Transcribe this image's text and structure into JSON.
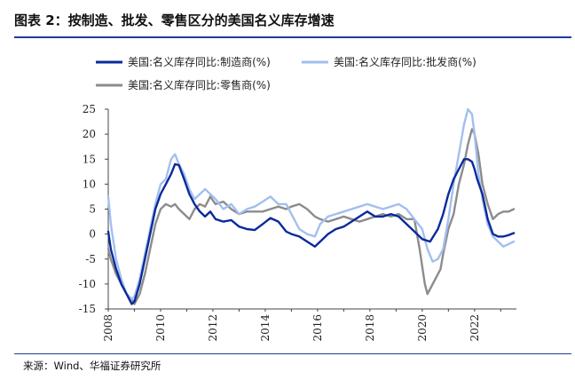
{
  "title": "图表 2：按制造、批发、零售区分的美国名义库存增速",
  "source": "来源：Wind、华福证券研究所",
  "chart_data": {
    "type": "line",
    "title": "图表 2：按制造、批发、零售区分的美国名义库存增速",
    "xlabel": "",
    "ylabel": "",
    "xlim": [
      2008,
      2023.6
    ],
    "ylim": [
      -15,
      25
    ],
    "yticks": [
      25,
      20,
      15,
      10,
      5,
      0,
      -5,
      -10,
      -15
    ],
    "xticks": [
      "2008",
      "2010",
      "2012",
      "2014",
      "2016",
      "2018",
      "2020",
      "2022"
    ],
    "grid": false,
    "legend_position": "top",
    "series": [
      {
        "name": "美国:名义库存同比:制造商(%)",
        "color": "#0a2a9c",
        "x": [
          2008.0,
          2008.1,
          2008.3,
          2008.5,
          2008.7,
          2008.9,
          2009.0,
          2009.2,
          2009.4,
          2009.6,
          2009.8,
          2010.0,
          2010.2,
          2010.4,
          2010.55,
          2010.7,
          2010.9,
          2011.1,
          2011.3,
          2011.5,
          2011.7,
          2011.9,
          2012.1,
          2012.4,
          2012.7,
          2013.0,
          2013.3,
          2013.6,
          2013.9,
          2014.2,
          2014.5,
          2014.8,
          2015.0,
          2015.3,
          2015.6,
          2015.9,
          2016.1,
          2016.4,
          2016.7,
          2017.0,
          2017.3,
          2017.6,
          2017.9,
          2018.2,
          2018.5,
          2018.8,
          2019.1,
          2019.4,
          2019.7,
          2020.0,
          2020.3,
          2020.6,
          2020.8,
          2021.0,
          2021.2,
          2021.4,
          2021.6,
          2021.75,
          2021.9,
          2022.0,
          2022.1,
          2022.3,
          2022.5,
          2022.7,
          2022.9,
          2023.1,
          2023.3,
          2023.5
        ],
        "y": [
          0.5,
          -3,
          -7,
          -10,
          -12,
          -14,
          -13.5,
          -10,
          -5,
          0,
          5,
          8,
          10,
          12,
          14,
          13.8,
          11,
          8,
          6,
          4.5,
          3.5,
          4.5,
          3,
          2.5,
          2.8,
          1.5,
          1,
          0.8,
          2,
          3.2,
          2.5,
          0.5,
          0,
          -0.5,
          -1.5,
          -2.5,
          -1.5,
          0,
          1,
          1.5,
          2.5,
          3.5,
          4.5,
          3.5,
          3.5,
          4,
          3.5,
          2,
          0.5,
          -1,
          -1.5,
          1,
          4,
          8,
          11,
          13,
          15,
          15,
          14.5,
          13,
          11,
          8,
          3,
          0,
          -0.5,
          -0.5,
          -0.2,
          0.2
        ]
      },
      {
        "name": "美国:名义库存同比:批发商(%)",
        "color": "#a3bff0",
        "x": [
          2008.0,
          2008.1,
          2008.3,
          2008.5,
          2008.7,
          2008.9,
          2009.0,
          2009.2,
          2009.4,
          2009.6,
          2009.8,
          2010.0,
          2010.2,
          2010.4,
          2010.55,
          2010.7,
          2010.9,
          2011.1,
          2011.3,
          2011.5,
          2011.7,
          2011.9,
          2012.1,
          2012.4,
          2012.7,
          2013.0,
          2013.3,
          2013.6,
          2013.9,
          2014.2,
          2014.5,
          2014.8,
          2015.0,
          2015.3,
          2015.6,
          2015.9,
          2016.1,
          2016.4,
          2016.7,
          2017.0,
          2017.3,
          2017.6,
          2017.9,
          2018.2,
          2018.5,
          2018.8,
          2019.1,
          2019.4,
          2019.7,
          2020.0,
          2020.2,
          2020.4,
          2020.6,
          2020.8,
          2021.0,
          2021.2,
          2021.4,
          2021.6,
          2021.75,
          2021.9,
          2022.0,
          2022.15,
          2022.3,
          2022.5,
          2022.7,
          2022.9,
          2023.1,
          2023.3,
          2023.5
        ],
        "y": [
          7.5,
          2,
          -5,
          -9,
          -12,
          -13,
          -12.5,
          -9,
          -4,
          1,
          6,
          10,
          11,
          15,
          16,
          14,
          12,
          9,
          7,
          8,
          9,
          8,
          7,
          5,
          6,
          4,
          5,
          5.5,
          6.5,
          7.5,
          6,
          6,
          4,
          1,
          0,
          -0.5,
          2,
          3.5,
          4,
          4.5,
          5,
          5.5,
          6,
          5.5,
          5,
          5.5,
          6,
          5,
          3,
          1,
          -3,
          -5.5,
          -5,
          -3,
          3,
          10,
          16,
          22,
          25,
          24,
          20,
          12,
          7,
          2,
          -0.5,
          -1.5,
          -2.5,
          -2,
          -1.5
        ]
      },
      {
        "name": "美国:名义库存同比:零售商(%)",
        "color": "#8c8c8c",
        "x": [
          2008.0,
          2008.1,
          2008.3,
          2008.5,
          2008.7,
          2008.9,
          2009.0,
          2009.2,
          2009.4,
          2009.6,
          2009.8,
          2010.0,
          2010.2,
          2010.4,
          2010.55,
          2010.7,
          2010.9,
          2011.1,
          2011.3,
          2011.5,
          2011.7,
          2011.9,
          2012.1,
          2012.4,
          2012.7,
          2013.0,
          2013.3,
          2013.6,
          2013.9,
          2014.2,
          2014.5,
          2014.8,
          2015.0,
          2015.3,
          2015.6,
          2015.9,
          2016.1,
          2016.4,
          2016.7,
          2017.0,
          2017.3,
          2017.6,
          2017.9,
          2018.2,
          2018.5,
          2018.8,
          2019.1,
          2019.4,
          2019.7,
          2019.9,
          2020.1,
          2020.2,
          2020.3,
          2020.5,
          2020.7,
          2020.8,
          2021.0,
          2021.2,
          2021.4,
          2021.6,
          2021.75,
          2021.9,
          2022.0,
          2022.15,
          2022.3,
          2022.5,
          2022.7,
          2022.9,
          2023.1,
          2023.3,
          2023.5
        ],
        "y": [
          -3,
          -5,
          -8,
          -10,
          -12,
          -13,
          -14,
          -12,
          -8,
          -3,
          2,
          5,
          6,
          5.5,
          6,
          5,
          4,
          3,
          5,
          6,
          5.5,
          7.5,
          6,
          6.5,
          5,
          4,
          4.5,
          4.5,
          4.5,
          5,
          5.5,
          5,
          5.5,
          6,
          5,
          3.5,
          3,
          2.5,
          3,
          3.5,
          3,
          2.5,
          3,
          3.5,
          4,
          3.5,
          4,
          3,
          3,
          -3,
          -10,
          -12,
          -11,
          -9,
          -7,
          -4,
          1,
          4,
          10,
          14,
          18,
          21,
          20,
          16,
          10,
          6,
          3,
          4,
          4.5,
          4.5,
          5
        ]
      }
    ]
  }
}
